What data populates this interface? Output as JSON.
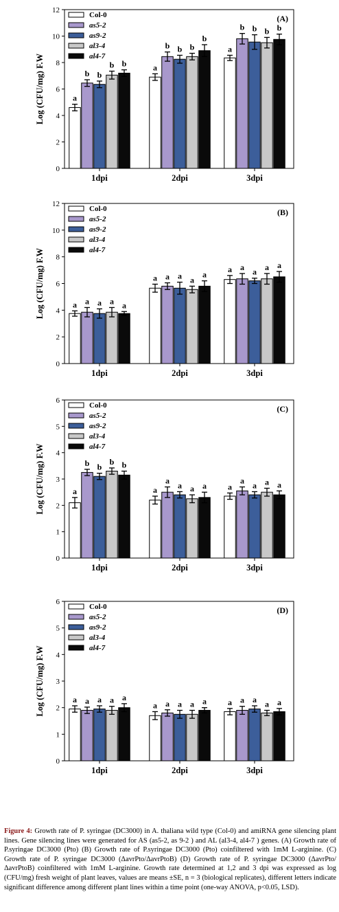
{
  "chart_data": [
    {
      "type": "bar",
      "panel_label": "(A)",
      "ylabel": "Log (CFU/mg) F.W",
      "ylim": [
        0,
        12
      ],
      "yticks": [
        0,
        2,
        4,
        6,
        8,
        10,
        12
      ],
      "categories": [
        "1dpi",
        "2dpi",
        "3dpi"
      ],
      "legend_position": "top-left",
      "series": [
        {
          "name": "Col-0",
          "color": "#ffffff",
          "values": [
            4.6,
            6.9,
            8.35
          ],
          "errors": [
            0.25,
            0.25,
            0.2
          ],
          "letters": [
            "a",
            "a",
            "a"
          ]
        },
        {
          "name": "as5-2",
          "color": "#a898cc",
          "values": [
            6.45,
            8.45,
            9.8
          ],
          "errors": [
            0.25,
            0.35,
            0.4
          ],
          "letters": [
            "b",
            "b",
            "b"
          ]
        },
        {
          "name": "as9-2",
          "color": "#3c5e9a",
          "values": [
            6.35,
            8.25,
            9.55
          ],
          "errors": [
            0.25,
            0.3,
            0.55
          ],
          "letters": [
            "b",
            "b",
            "b"
          ]
        },
        {
          "name": "al3-4",
          "color": "#c8c8c8",
          "values": [
            7.05,
            8.45,
            9.5
          ],
          "errors": [
            0.3,
            0.25,
            0.4
          ],
          "letters": [
            "b",
            "b",
            "b"
          ]
        },
        {
          "name": "al4-7",
          "color": "#0a0a0a",
          "values": [
            7.2,
            8.9,
            9.75
          ],
          "errors": [
            0.25,
            0.45,
            0.4
          ],
          "letters": [
            "b",
            "b",
            "b"
          ]
        }
      ]
    },
    {
      "type": "bar",
      "panel_label": "(B)",
      "ylabel": "Log (CFU/mg) F.W",
      "ylim": [
        0,
        12
      ],
      "yticks": [
        0,
        2,
        4,
        6,
        8,
        10,
        12
      ],
      "categories": [
        "1dpi",
        "2dpi",
        "3dpi"
      ],
      "legend_position": "top-left",
      "series": [
        {
          "name": "Col-0",
          "color": "#ffffff",
          "values": [
            3.75,
            5.65,
            6.3
          ],
          "errors": [
            0.2,
            0.3,
            0.3
          ],
          "letters": [
            "a",
            "a",
            "a"
          ]
        },
        {
          "name": "as5-2",
          "color": "#a898cc",
          "values": [
            3.85,
            5.8,
            6.35
          ],
          "errors": [
            0.35,
            0.25,
            0.4
          ],
          "letters": [
            "a",
            "a",
            "a"
          ]
        },
        {
          "name": "as9-2",
          "color": "#3c5e9a",
          "values": [
            3.75,
            5.65,
            6.2
          ],
          "errors": [
            0.35,
            0.45,
            0.2
          ],
          "letters": [
            "a",
            "a",
            "a"
          ]
        },
        {
          "name": "al3-4",
          "color": "#c8c8c8",
          "values": [
            3.85,
            5.55,
            6.35
          ],
          "errors": [
            0.35,
            0.25,
            0.4
          ],
          "letters": [
            "a",
            "a",
            "a"
          ]
        },
        {
          "name": "al4-7",
          "color": "#0a0a0a",
          "values": [
            3.75,
            5.8,
            6.5
          ],
          "errors": [
            0.15,
            0.4,
            0.4
          ],
          "letters": [
            "a",
            "a",
            "a"
          ]
        }
      ]
    },
    {
      "type": "bar",
      "panel_label": "(C)",
      "ylabel": "Log (CFU/mg) F.W",
      "ylim": [
        0,
        6
      ],
      "yticks": [
        0,
        1,
        2,
        3,
        4,
        5,
        6
      ],
      "categories": [
        "1dpi",
        "2dpi",
        "3dpi"
      ],
      "legend_position": "top-left",
      "series": [
        {
          "name": "Col-0",
          "color": "#ffffff",
          "values": [
            2.1,
            2.2,
            2.35
          ],
          "errors": [
            0.2,
            0.15,
            0.12
          ],
          "letters": [
            "a",
            "a",
            "a"
          ]
        },
        {
          "name": "as5-2",
          "color": "#a898cc",
          "values": [
            3.25,
            2.5,
            2.55
          ],
          "errors": [
            0.12,
            0.2,
            0.15
          ],
          "letters": [
            "b",
            "a",
            "a"
          ]
        },
        {
          "name": "as9-2",
          "color": "#3c5e9a",
          "values": [
            3.1,
            2.4,
            2.4
          ],
          "errors": [
            0.12,
            0.12,
            0.12
          ],
          "letters": [
            "b",
            "a",
            "a"
          ]
        },
        {
          "name": "al3-4",
          "color": "#c8c8c8",
          "values": [
            3.3,
            2.25,
            2.5
          ],
          "errors": [
            0.12,
            0.15,
            0.15
          ],
          "letters": [
            "b",
            "a",
            "a"
          ]
        },
        {
          "name": "al4-7",
          "color": "#0a0a0a",
          "values": [
            3.15,
            2.3,
            2.4
          ],
          "errors": [
            0.15,
            0.2,
            0.15
          ],
          "letters": [
            "b",
            "a",
            "a"
          ]
        }
      ]
    },
    {
      "type": "bar",
      "panel_label": "(D)",
      "ylabel": "Log (CFU/mg) F.W",
      "ylim": [
        0,
        6
      ],
      "yticks": [
        0,
        1,
        2,
        3,
        4,
        5,
        6
      ],
      "categories": [
        "1dpi",
        "2dpi",
        "3dpi"
      ],
      "legend_position": "top-left",
      "series": [
        {
          "name": "Col-0",
          "color": "#ffffff",
          "values": [
            1.95,
            1.7,
            1.85
          ],
          "errors": [
            0.12,
            0.15,
            0.12
          ],
          "letters": [
            "a",
            "a",
            "a"
          ]
        },
        {
          "name": "as5-2",
          "color": "#a898cc",
          "values": [
            1.9,
            1.8,
            1.9
          ],
          "errors": [
            0.12,
            0.12,
            0.15
          ],
          "letters": [
            "a",
            "a",
            "a"
          ]
        },
        {
          "name": "as9-2",
          "color": "#3c5e9a",
          "values": [
            1.95,
            1.75,
            1.95
          ],
          "errors": [
            0.12,
            0.15,
            0.12
          ],
          "letters": [
            "a",
            "a",
            "a"
          ]
        },
        {
          "name": "al3-4",
          "color": "#c8c8c8",
          "values": [
            1.9,
            1.75,
            1.8
          ],
          "errors": [
            0.15,
            0.15,
            0.1
          ],
          "letters": [
            "a",
            "a",
            "a"
          ]
        },
        {
          "name": "al4-7",
          "color": "#0a0a0a",
          "values": [
            2.0,
            1.9,
            1.85
          ],
          "errors": [
            0.15,
            0.1,
            0.12
          ],
          "letters": [
            "a",
            "a",
            "a"
          ]
        }
      ]
    }
  ],
  "caption": {
    "label": "Figure 4:",
    "text": "Growth rate of P. syringae (DC3000) in A. thaliana wild type (Col-0) and amiRNA gene silencing plant lines. Gene silencing lines were generated for AS (as5-2, as 9-2 ) and AL (al3-4, al4-7 ) genes. (A) Growth rate of P.syringae DC3000 (Pto) (B) Growth rate of P.syringae DC3000 (Pto) coinfiltered with 1mM L-arginine. (C) Growth rate of P. syringae DC3000 (ΔavrPto/ΔavrPtoB) (D) Growth rate of P. syringae DC3000 (ΔavrPto/ΔavrPtoB) coinfiltered with 1mM L-arginine. Growth rate determined at 1,2 and 3 dpi was expressed as log (CFU/mg) fresh weight of plant leaves, values are means ±SE, n = 3 (biological replicates), different letters indicate significant difference among different plant lines within a time point (one-way ANOVA, p<0.05, LSD)."
  }
}
